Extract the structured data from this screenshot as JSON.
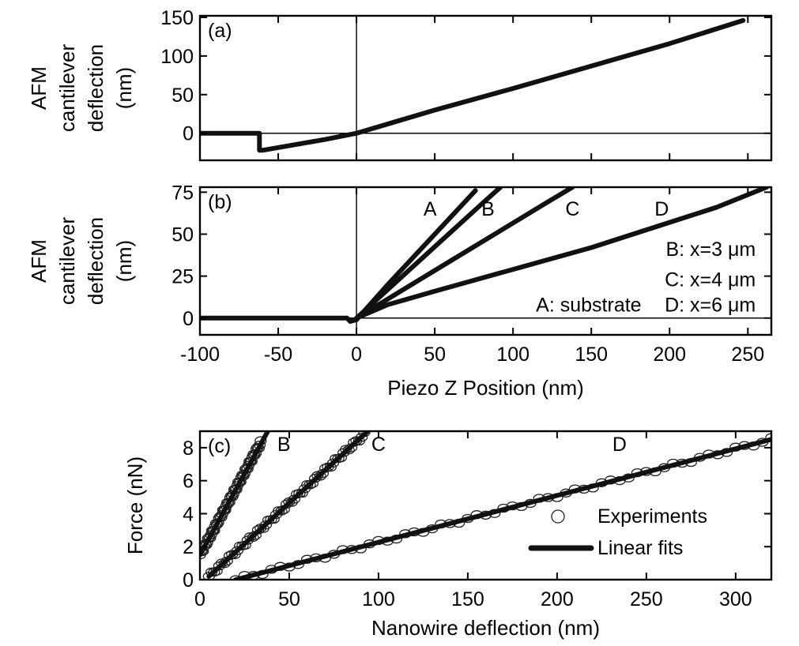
{
  "chart_data": [
    {
      "id": "a",
      "type": "line",
      "panel_label": "(a)",
      "ylabel": [
        "AFM",
        "cantilever",
        "deflection",
        "(nm)"
      ],
      "xlabel": "",
      "xlim": [
        -100,
        265
      ],
      "ylim": [
        -35,
        152
      ],
      "xticks": [
        -100,
        -50,
        0,
        50,
        100,
        150,
        200,
        250
      ],
      "yticks": [
        0,
        50,
        100,
        150
      ],
      "ytick_labels": [
        "0",
        "50",
        "100",
        "150"
      ],
      "show_xtick_labels": false,
      "series": [
        {
          "points": [
            [
              -100,
              0
            ],
            [
              -62,
              0
            ],
            [
              -62,
              -22
            ],
            [
              -60,
              -22
            ],
            [
              -40,
              -15
            ],
            [
              -20,
              -8
            ],
            [
              0,
              0
            ],
            [
              50,
              30
            ],
            [
              100,
              58
            ],
            [
              150,
              87
            ],
            [
              200,
              116
            ],
            [
              247,
              146
            ]
          ]
        }
      ]
    },
    {
      "id": "b",
      "type": "line",
      "panel_label": "(b)",
      "ylabel": [
        "AFM",
        "cantilever",
        "deflection",
        "(nm)"
      ],
      "xlabel": "Piezo Z Position (nm)",
      "xlim": [
        -100,
        265
      ],
      "ylim": [
        -10,
        78
      ],
      "xticks": [
        -100,
        -50,
        0,
        50,
        100,
        150,
        200,
        250
      ],
      "xtick_labels": [
        "-100",
        "-50",
        "0",
        "50",
        "100",
        "150",
        "200",
        "250"
      ],
      "yticks": [
        0,
        25,
        50,
        75
      ],
      "ytick_labels": [
        "0",
        "25",
        "50",
        "75"
      ],
      "show_xtick_labels": true,
      "series": [
        {
          "name": "A",
          "points": [
            [
              -100,
              0
            ],
            [
              -6,
              0
            ],
            [
              -4,
              -2
            ],
            [
              0,
              -1
            ],
            [
              20,
              20
            ],
            [
              40,
              40
            ],
            [
              60,
              60
            ],
            [
              76,
              76
            ]
          ]
        },
        {
          "name": "B",
          "points": [
            [
              0,
              0
            ],
            [
              20,
              17
            ],
            [
              40,
              34
            ],
            [
              60,
              51
            ],
            [
              80,
              68
            ],
            [
              92,
              78
            ]
          ]
        },
        {
          "name": "C",
          "points": [
            [
              0,
              0
            ],
            [
              30,
              17
            ],
            [
              60,
              34
            ],
            [
              90,
              51
            ],
            [
              120,
              68
            ],
            [
              138,
              78
            ]
          ]
        },
        {
          "name": "D",
          "points": [
            [
              0,
              0
            ],
            [
              20,
              8
            ],
            [
              50,
              16
            ],
            [
              100,
              29
            ],
            [
              150,
              42
            ],
            [
              200,
              57
            ],
            [
              230,
              66
            ],
            [
              262,
              78
            ]
          ]
        }
      ],
      "labels": [
        {
          "text": "A",
          "x": 47,
          "y": 61
        },
        {
          "text": "B",
          "x": 84,
          "y": 61
        },
        {
          "text": "C",
          "x": 138,
          "y": 61
        },
        {
          "text": "D",
          "x": 195,
          "y": 61
        }
      ],
      "legend_lines": [
        {
          "text": "B: x=3 μm",
          "x": 255,
          "y": 37
        },
        {
          "text": "C: x=4 μm",
          "x": 255,
          "y": 19
        },
        {
          "text": "A: substrate",
          "x": 182,
          "y": 4
        },
        {
          "text": "D: x=6 μm",
          "x": 255,
          "y": 4
        }
      ]
    },
    {
      "id": "c",
      "type": "scatter",
      "panel_label": "(c)",
      "ylabel": [
        "Force (nN)"
      ],
      "xlabel": "Nanowire deflection (nm)",
      "xlim": [
        0,
        320
      ],
      "ylim": [
        0,
        9
      ],
      "xticks": [
        0,
        50,
        100,
        150,
        200,
        250,
        300
      ],
      "xtick_labels": [
        "0",
        "50",
        "100",
        "150",
        "200",
        "250",
        "300"
      ],
      "yticks": [
        0,
        2,
        4,
        6,
        8
      ],
      "ytick_labels": [
        "0",
        "2",
        "4",
        "6",
        "8"
      ],
      "show_xtick_labels": true,
      "series": [
        {
          "name": "B",
          "fit": [
            [
              0,
              1.5
            ],
            [
              38,
              9
            ]
          ],
          "experiments": {
            "x_start": 0,
            "x_end": 34,
            "y_start": 1.5,
            "y_end": 8.3
          }
        },
        {
          "name": "C",
          "fit": [
            [
              5,
              0.2
            ],
            [
              94,
              9
            ]
          ],
          "experiments": {
            "x_start": 5,
            "x_end": 92,
            "y_start": 0.2,
            "y_end": 8.8
          }
        },
        {
          "name": "D",
          "fit": [
            [
              20,
              0
            ],
            [
              320,
              8.5
            ]
          ],
          "experiments": {
            "x_start": 20,
            "x_end": 320,
            "y_start": 0,
            "y_end": 8.5
          }
        }
      ],
      "labels": [
        {
          "text": "B",
          "x": 47,
          "y": 7.8
        },
        {
          "text": "C",
          "x": 100,
          "y": 7.8
        },
        {
          "text": "D",
          "x": 235,
          "y": 7.8
        }
      ],
      "legend": {
        "position": "bottom-right",
        "entries": [
          "Experiments",
          "Linear fits"
        ]
      }
    }
  ]
}
